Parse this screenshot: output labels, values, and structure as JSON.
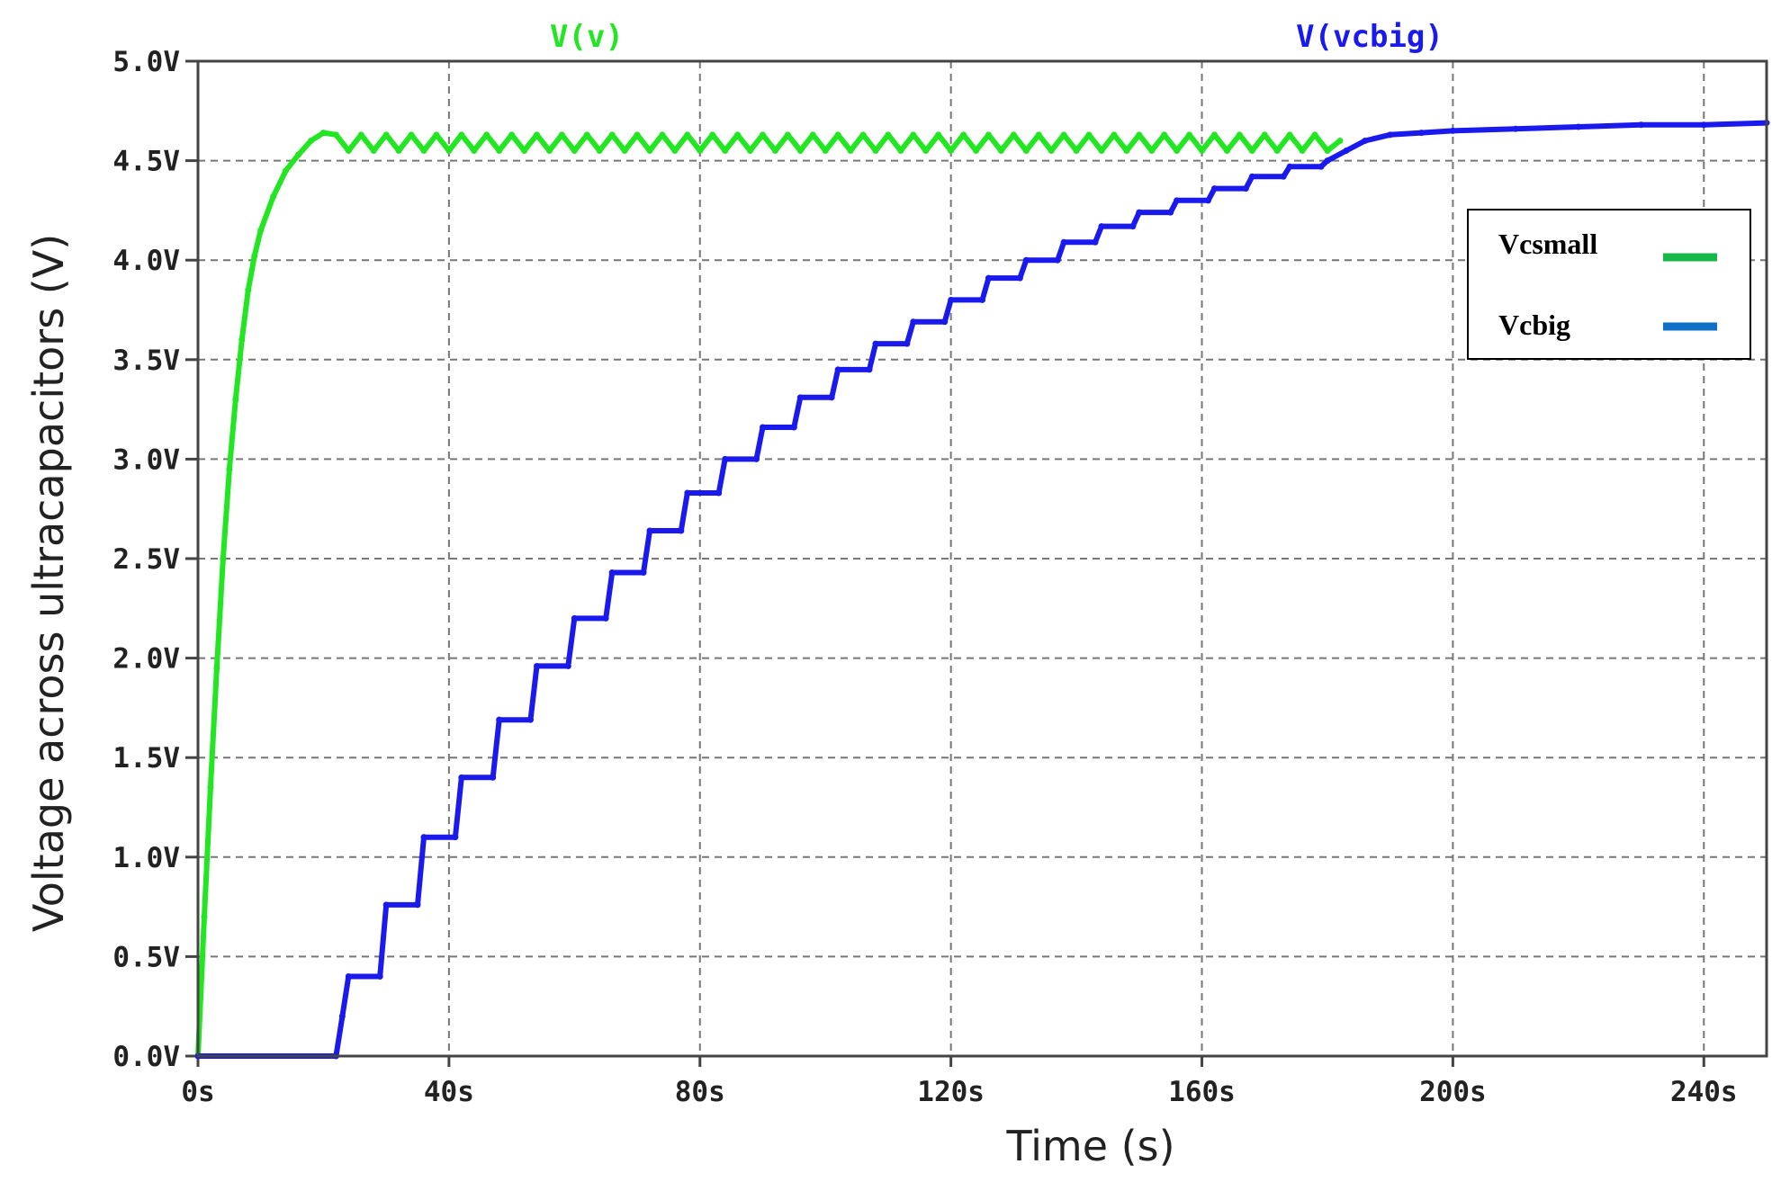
{
  "chart_data": {
    "type": "line",
    "xlabel": "Time (s)",
    "ylabel": "Voltage across ultracapacitors (V)",
    "xlim": [
      0,
      250
    ],
    "ylim": [
      0,
      5
    ],
    "x_ticks": [
      0,
      40,
      80,
      120,
      160,
      200,
      240
    ],
    "x_tick_labels": [
      "0s",
      "40s",
      "80s",
      "120s",
      "160s",
      "200s",
      "240s"
    ],
    "y_ticks": [
      0,
      0.5,
      1.0,
      1.5,
      2.0,
      2.5,
      3.0,
      3.5,
      4.0,
      4.5,
      5.0
    ],
    "y_tick_labels": [
      "0.0V",
      "0.5V",
      "1.0V",
      "1.5V",
      "2.0V",
      "2.5V",
      "3.0V",
      "3.5V",
      "4.0V",
      "4.5V",
      "5.0V"
    ],
    "grid": true,
    "legend_position": "top-right",
    "trace_labels": [
      "V(v)",
      "V(vcbig)"
    ],
    "series": [
      {
        "name": "Vcsmall",
        "trace_label": "V(v)",
        "color": "#22e622",
        "legend_color": "#16b84a",
        "x": [
          0,
          1,
          2,
          3,
          4,
          5,
          6,
          7,
          8,
          9,
          10,
          12,
          14,
          16,
          18,
          20,
          22,
          24,
          26,
          28,
          30,
          32,
          34,
          36,
          38,
          40,
          42,
          44,
          46,
          48,
          50,
          52,
          54,
          56,
          58,
          60,
          62,
          64,
          66,
          68,
          70,
          72,
          74,
          76,
          78,
          80,
          82,
          84,
          86,
          88,
          90,
          92,
          94,
          96,
          98,
          100,
          102,
          104,
          106,
          108,
          110,
          112,
          114,
          116,
          118,
          120,
          122,
          124,
          126,
          128,
          130,
          132,
          134,
          136,
          138,
          140,
          142,
          144,
          146,
          148,
          150,
          152,
          154,
          156,
          158,
          160,
          162,
          164,
          166,
          168,
          170,
          172,
          174,
          176,
          178,
          180,
          182
        ],
        "y": [
          0,
          0.7,
          1.35,
          1.95,
          2.5,
          2.95,
          3.3,
          3.6,
          3.85,
          4.02,
          4.15,
          4.32,
          4.45,
          4.53,
          4.6,
          4.64,
          4.63,
          4.55,
          4.63,
          4.55,
          4.63,
          4.55,
          4.63,
          4.55,
          4.63,
          4.55,
          4.63,
          4.55,
          4.63,
          4.55,
          4.63,
          4.55,
          4.63,
          4.55,
          4.63,
          4.55,
          4.63,
          4.55,
          4.63,
          4.55,
          4.63,
          4.55,
          4.63,
          4.55,
          4.63,
          4.55,
          4.63,
          4.55,
          4.63,
          4.55,
          4.63,
          4.55,
          4.63,
          4.55,
          4.63,
          4.55,
          4.63,
          4.55,
          4.63,
          4.55,
          4.63,
          4.55,
          4.63,
          4.55,
          4.63,
          4.55,
          4.63,
          4.55,
          4.63,
          4.55,
          4.63,
          4.55,
          4.63,
          4.55,
          4.63,
          4.55,
          4.63,
          4.55,
          4.63,
          4.55,
          4.63,
          4.55,
          4.63,
          4.55,
          4.63,
          4.55,
          4.63,
          4.55,
          4.63,
          4.55,
          4.63,
          4.55,
          4.63,
          4.55,
          4.63,
          4.55,
          4.6
        ]
      },
      {
        "name": "Vcbig",
        "trace_label": "V(vcbig)",
        "color": "#1a1aee",
        "legend_color": "#1070c8",
        "x": [
          0,
          22,
          23,
          24,
          29,
          30,
          35,
          36,
          41,
          42,
          47,
          48,
          53,
          54,
          59,
          60,
          65,
          66,
          71,
          72,
          77,
          78,
          83,
          84,
          89,
          90,
          95,
          96,
          101,
          102,
          107,
          108,
          113,
          114,
          119,
          120,
          125,
          126,
          131,
          132,
          137,
          138,
          143,
          144,
          149,
          150,
          155,
          156,
          161,
          162,
          167,
          168,
          173,
          174,
          179,
          180,
          183,
          186,
          190,
          195,
          200,
          210,
          220,
          230,
          240,
          250
        ],
        "y": [
          0,
          0,
          0.2,
          0.4,
          0.4,
          0.76,
          0.76,
          1.1,
          1.1,
          1.4,
          1.4,
          1.69,
          1.69,
          1.96,
          1.96,
          2.2,
          2.2,
          2.43,
          2.43,
          2.64,
          2.64,
          2.83,
          2.83,
          3.0,
          3.0,
          3.16,
          3.16,
          3.31,
          3.31,
          3.45,
          3.45,
          3.58,
          3.58,
          3.69,
          3.69,
          3.8,
          3.8,
          3.91,
          3.91,
          4.0,
          4.0,
          4.09,
          4.09,
          4.17,
          4.17,
          4.24,
          4.24,
          4.3,
          4.3,
          4.36,
          4.36,
          4.42,
          4.42,
          4.47,
          4.47,
          4.5,
          4.55,
          4.6,
          4.63,
          4.64,
          4.65,
          4.66,
          4.67,
          4.68,
          4.68,
          4.69
        ]
      }
    ]
  }
}
